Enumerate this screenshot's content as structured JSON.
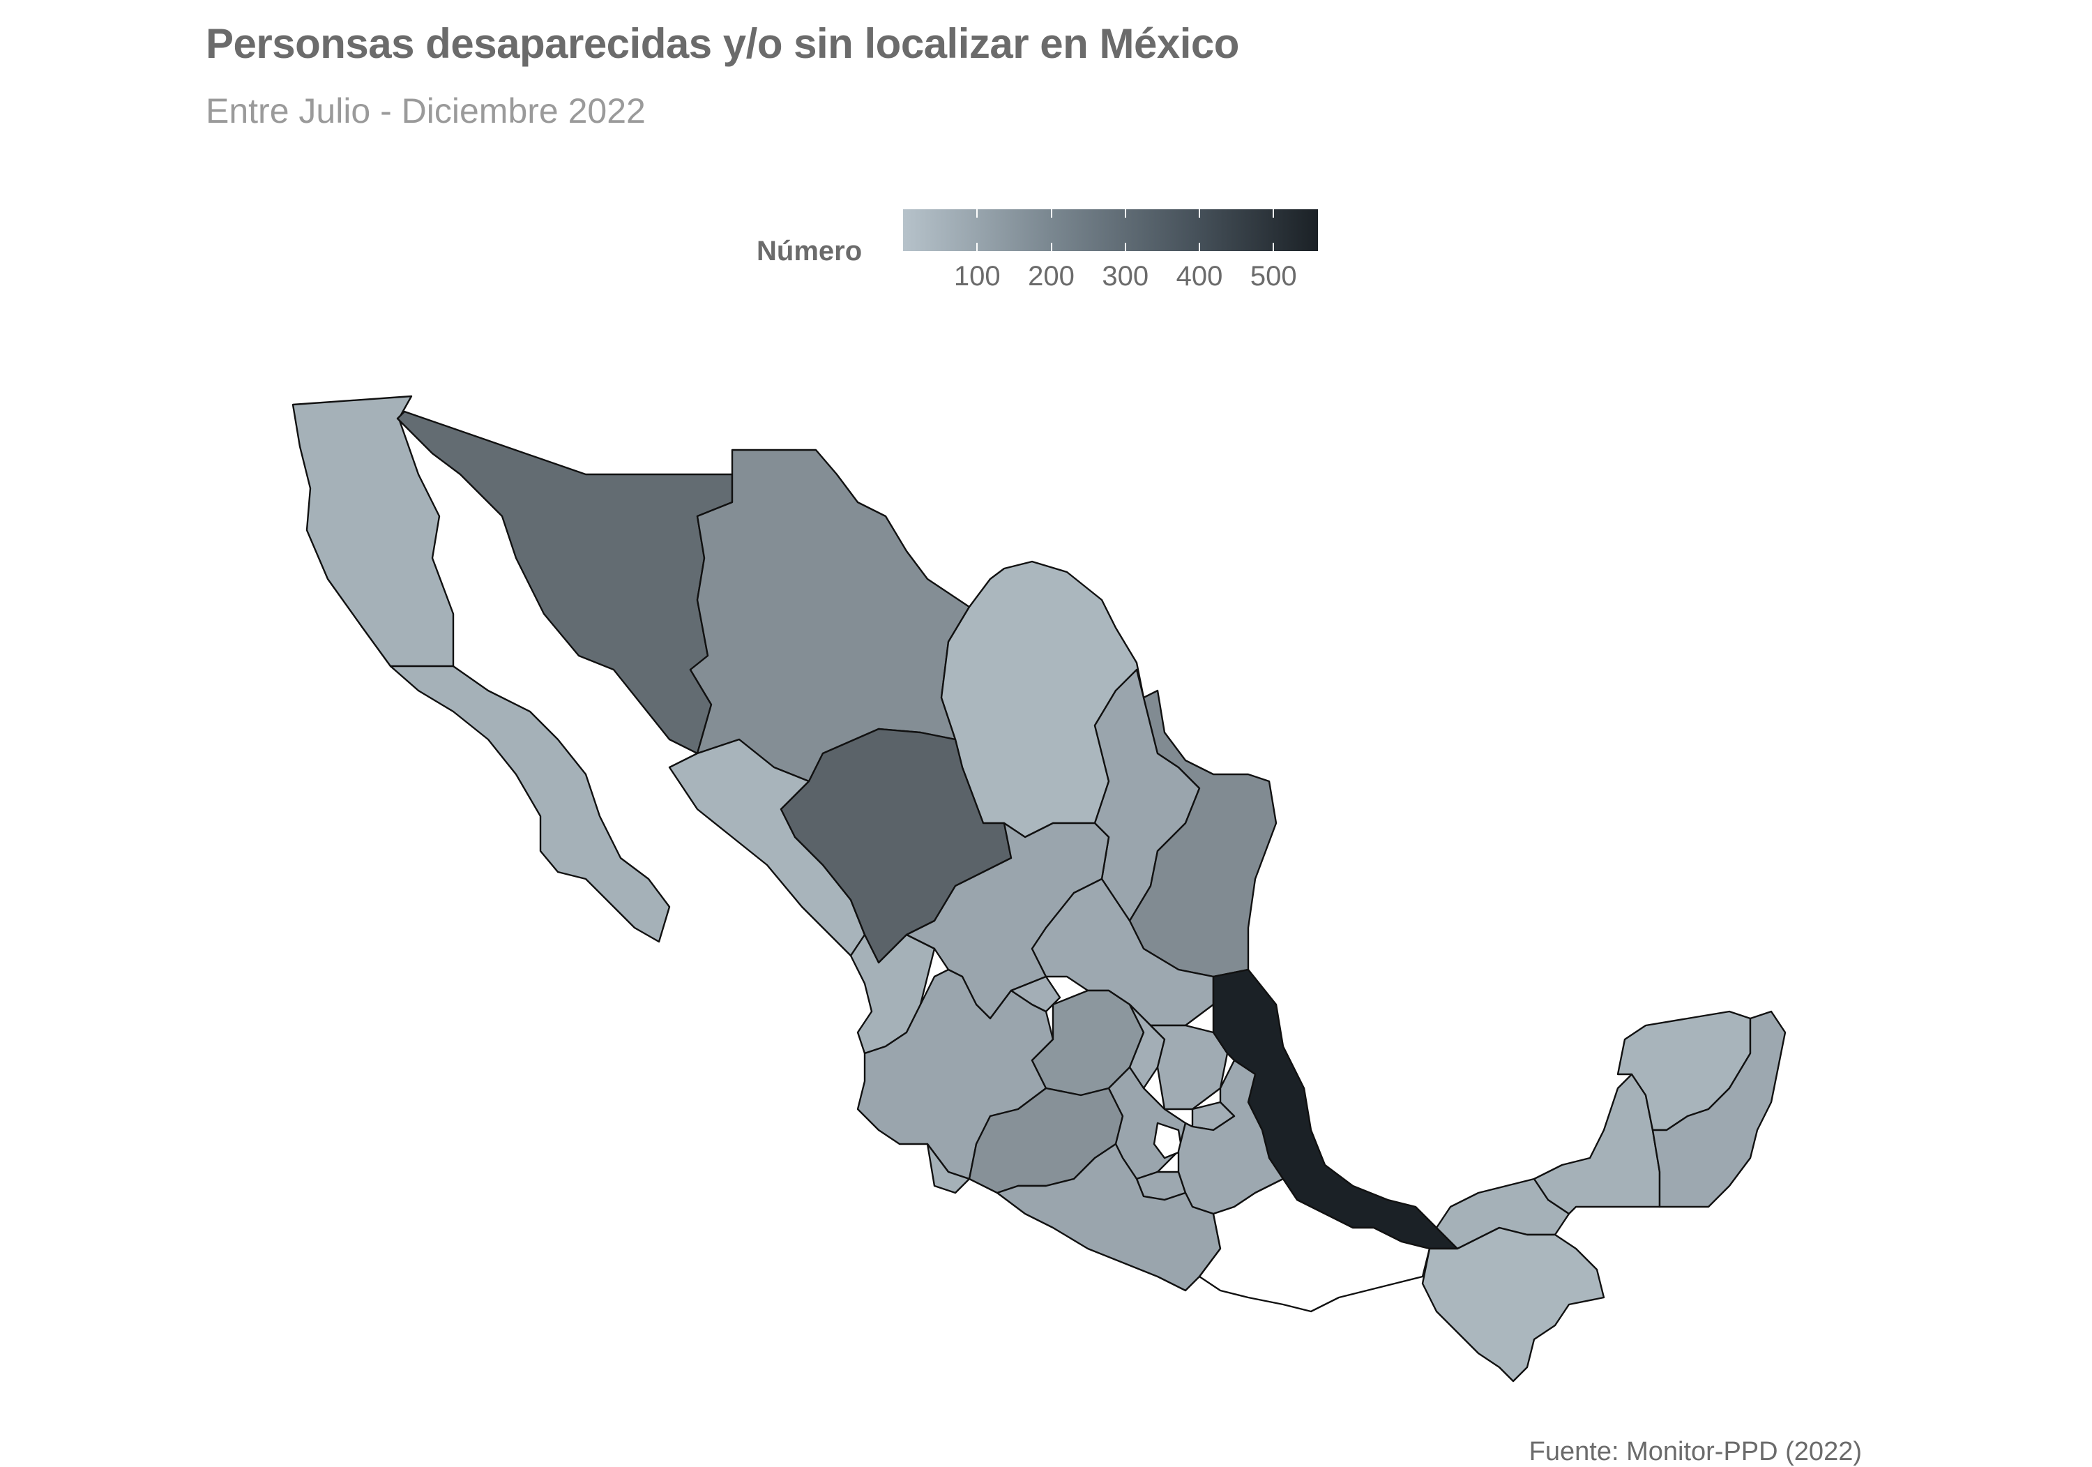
{
  "title": "Personsas desaparecidas y/o sin localizar en México",
  "subtitle": "Entre Julio - Diciembre 2022",
  "source": "Fuente: Monitor-PPD (2022)",
  "legend": {
    "label": "Número",
    "ticks": [
      "100",
      "200",
      "300",
      "400",
      "500"
    ],
    "tick_values": [
      100,
      200,
      300,
      400,
      500
    ],
    "range": [
      0,
      560
    ],
    "color_low": "#b6c2ca",
    "color_high": "#1b2126"
  },
  "map_data": {
    "type": "choropleth",
    "variable": "Número",
    "regions": [
      {
        "name": "Baja California",
        "value": 60
      },
      {
        "name": "Baja California Sur",
        "value": 60
      },
      {
        "name": "Sonora",
        "value": 300
      },
      {
        "name": "Chihuahua",
        "value": 180
      },
      {
        "name": "Coahuila",
        "value": 40
      },
      {
        "name": "Nuevo León",
        "value": 100
      },
      {
        "name": "Tamaulipas",
        "value": 190
      },
      {
        "name": "Sinaloa",
        "value": 50
      },
      {
        "name": "Durango",
        "value": 330
      },
      {
        "name": "Zacatecas",
        "value": 100
      },
      {
        "name": "San Luis Potosí",
        "value": 90
      },
      {
        "name": "Nayarit",
        "value": 60
      },
      {
        "name": "Jalisco",
        "value": 100
      },
      {
        "name": "Aguascalientes",
        "value": 70
      },
      {
        "name": "Guanajuato",
        "value": 150
      },
      {
        "name": "Querétaro",
        "value": 70
      },
      {
        "name": "Hidalgo",
        "value": 80
      },
      {
        "name": "Veracruz",
        "value": 560
      },
      {
        "name": "Michoacán",
        "value": 170
      },
      {
        "name": "Colima",
        "value": 60
      },
      {
        "name": "Estado de México",
        "value": 100
      },
      {
        "name": "Ciudad de México",
        "value": 0
      },
      {
        "name": "Morelos",
        "value": 90
      },
      {
        "name": "Tlaxcala",
        "value": 70
      },
      {
        "name": "Puebla",
        "value": 90
      },
      {
        "name": "Guerrero",
        "value": 100
      },
      {
        "name": "Oaxaca",
        "value": 0
      },
      {
        "name": "Tabasco",
        "value": 60
      },
      {
        "name": "Chiapas",
        "value": 40
      },
      {
        "name": "Campeche",
        "value": 60
      },
      {
        "name": "Yucatán",
        "value": 50
      },
      {
        "name": "Quintana Roo",
        "value": 90
      }
    ]
  }
}
